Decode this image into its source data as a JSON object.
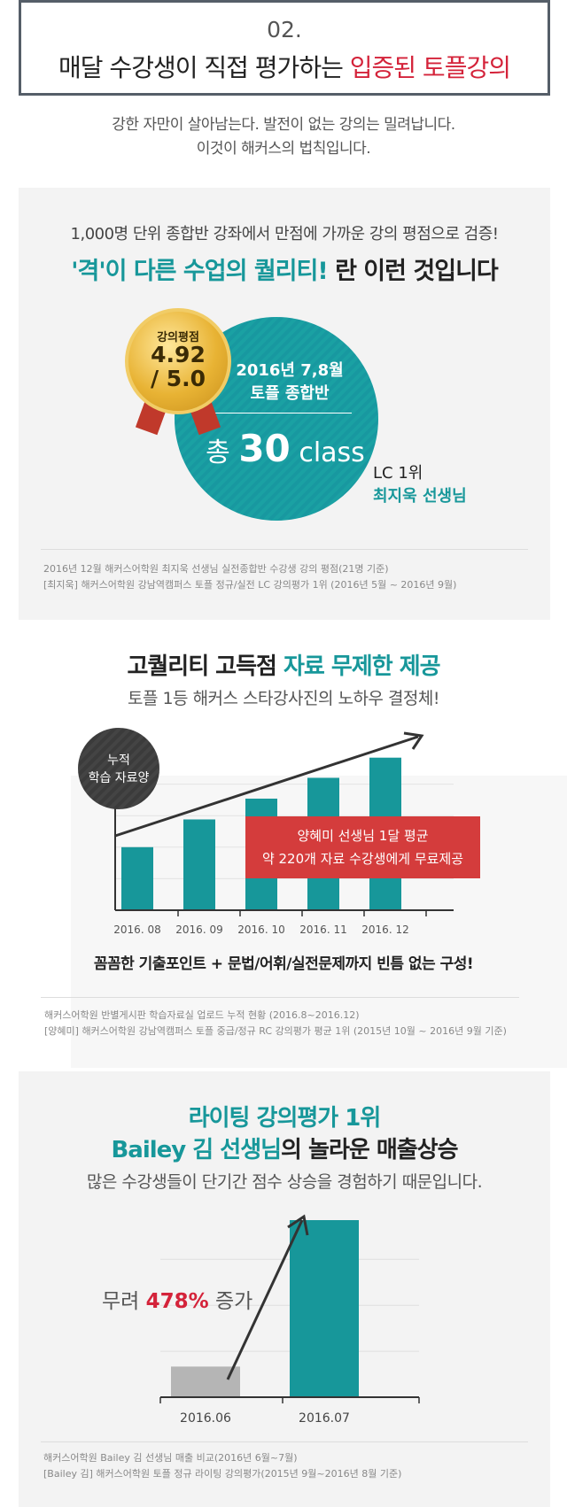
{
  "header": {
    "number": "02.",
    "title_prefix": "매달 수강생이 직접 평가하는 ",
    "title_highlight": "입증된 토플강의"
  },
  "intro": {
    "line1": "강한 자만이 살아남는다. 발전이 없는 강의는 밀려납니다.",
    "line2": "이것이 해커스의 법칙입니다."
  },
  "section1": {
    "subtitle": "1,000명 단위 종합반 강좌에서 만점에 가까운 강의 평점으로 검증!",
    "title_highlight": "'격'이 다른 수업의 퀄리티!",
    "title_rest": " 란 이런 것입니다",
    "badge": {
      "label": "강의평점",
      "score": "4.92",
      "max": "/ 5.0"
    },
    "circle": {
      "line1": "2016년 7,8월",
      "line2": "토플 종합반",
      "prefix": "총",
      "count": "30",
      "unit": "class"
    },
    "rank": {
      "line1": "LC 1위",
      "line2": "최지욱 선생님"
    },
    "notes": [
      "2016년 12월 해커스어학원 최지욱 선생님 실전종합반 수강생 강의 평점(21명 기준)",
      "[최지욱] 해커스어학원 강남역캠퍼스 토플 정규/실전 LC 강의평가 1위 (2016년 5월 ~ 2016년 9월)"
    ]
  },
  "section2": {
    "title_prefix": "고퀄리티 고득점 ",
    "title_highlight": "자료 무제한 제공",
    "subtitle": "토플 1등 해커스 스타강사진의 노하우 결정체!",
    "circle": {
      "line1": "누적",
      "line2": "학습 자료양"
    },
    "callout": {
      "line1": "양혜미 선생님 1달 평균",
      "line2": "약 220개 자료 수강생에게 무료제공"
    },
    "footer": "꼼꼼한 기출포인트 + 문법/어휘/실전문제까지 빈틈 없는 구성!",
    "notes": [
      "해커스어학원 반별게시판 학습자료실 업로드 누적 현황 (2016.8~2016.12)",
      "[양혜미] 해커스어학원 강남역캠퍼스 토플 중급/정규 RC 강의평가 평균 1위 (2015년 10월 ~ 2016년 9월 기준)"
    ]
  },
  "section3": {
    "title1": "라이팅 강의평가 1위",
    "title2_highlight": "Bailey 김 선생님",
    "title2_rest": "의 놀라운 매출상승",
    "subtitle": "많은 수강생들이 단기간 점수 상승을 경험하기 때문입니다.",
    "increase": {
      "prefix": "무려 ",
      "value": "478%",
      "suffix": " 증가"
    },
    "notes": [
      "해커스어학원 Bailey 김 선생님 매출 비교(2016년 6월~7월)",
      "[Bailey 김] 해커스어학원 토플 정규 라이팅 강의평가(2015년 9월~2016년 8월 기준)"
    ]
  },
  "chart_data": [
    {
      "type": "bar",
      "categories": [
        "2016. 08",
        "2016. 09",
        "2016. 10",
        "2016. 11",
        "2016. 12"
      ],
      "values": [
        1.0,
        1.44,
        1.77,
        2.1,
        2.42
      ],
      "title": "",
      "xlabel": "",
      "ylabel": "",
      "grid": true,
      "legend": "none",
      "colors": {
        "bar": "#17979a",
        "arrow": "#333333"
      }
    },
    {
      "type": "bar",
      "categories": [
        "2016.06",
        "2016.07"
      ],
      "values": [
        1.0,
        5.78
      ],
      "title": "",
      "xlabel": "",
      "ylabel": "",
      "grid": true,
      "legend": "none",
      "colors": {
        "low": "#b5b5b5",
        "high": "#17979a",
        "arrow": "#333333"
      }
    }
  ]
}
